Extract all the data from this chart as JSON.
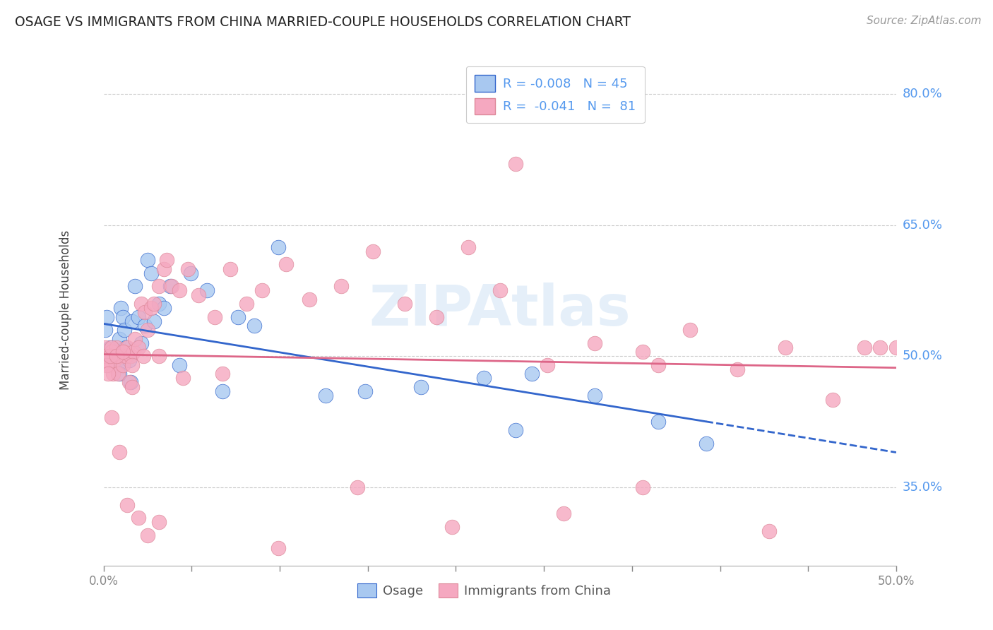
{
  "title": "OSAGE VS IMMIGRANTS FROM CHINA MARRIED-COUPLE HOUSEHOLDS CORRELATION CHART",
  "source": "Source: ZipAtlas.com",
  "ylabel": "Married-couple Households",
  "ytick_labels": [
    "35.0%",
    "50.0%",
    "65.0%",
    "80.0%"
  ],
  "ytick_values": [
    0.35,
    0.5,
    0.65,
    0.8
  ],
  "xlim": [
    0.0,
    0.5
  ],
  "ylim": [
    0.26,
    0.845
  ],
  "legend_line1": "R = -0.008   N = 45",
  "legend_line2": "R =  -0.041   N =  81",
  "color_blue": "#A8C8F0",
  "color_pink": "#F5A8C0",
  "color_trendline_blue": "#3366CC",
  "color_trendline_pink": "#DD6688",
  "background_color": "#FFFFFF",
  "grid_color": "#CCCCCC",
  "title_color": "#222222",
  "axis_label_color": "#5599EE",
  "watermark_color": "#AACCEE",
  "xtick_positions": [
    0.0,
    0.0556,
    0.1111,
    0.1667,
    0.2222,
    0.2778,
    0.3333,
    0.3889,
    0.4444,
    0.5
  ],
  "blue_x": [
    0.001,
    0.002,
    0.003,
    0.004,
    0.005,
    0.006,
    0.007,
    0.008,
    0.009,
    0.01,
    0.01,
    0.011,
    0.012,
    0.013,
    0.014,
    0.015,
    0.016,
    0.017,
    0.018,
    0.02,
    0.022,
    0.024,
    0.026,
    0.028,
    0.03,
    0.032,
    0.035,
    0.038,
    0.042,
    0.048,
    0.055,
    0.065,
    0.075,
    0.085,
    0.095,
    0.11,
    0.14,
    0.165,
    0.2,
    0.24,
    0.27,
    0.31,
    0.35,
    0.26,
    0.38
  ],
  "blue_y": [
    0.53,
    0.545,
    0.5,
    0.51,
    0.505,
    0.5,
    0.5,
    0.495,
    0.49,
    0.52,
    0.48,
    0.555,
    0.545,
    0.53,
    0.51,
    0.5,
    0.495,
    0.47,
    0.54,
    0.58,
    0.545,
    0.515,
    0.535,
    0.61,
    0.595,
    0.54,
    0.56,
    0.555,
    0.58,
    0.49,
    0.595,
    0.575,
    0.46,
    0.545,
    0.535,
    0.625,
    0.455,
    0.46,
    0.465,
    0.475,
    0.48,
    0.455,
    0.425,
    0.415,
    0.4
  ],
  "pink_x": [
    0.001,
    0.002,
    0.003,
    0.004,
    0.005,
    0.006,
    0.007,
    0.008,
    0.009,
    0.01,
    0.011,
    0.012,
    0.013,
    0.014,
    0.015,
    0.016,
    0.017,
    0.018,
    0.019,
    0.02,
    0.022,
    0.024,
    0.026,
    0.028,
    0.03,
    0.032,
    0.035,
    0.038,
    0.04,
    0.043,
    0.048,
    0.053,
    0.06,
    0.07,
    0.08,
    0.09,
    0.1,
    0.115,
    0.13,
    0.15,
    0.17,
    0.19,
    0.21,
    0.23,
    0.25,
    0.28,
    0.31,
    0.34,
    0.37,
    0.4,
    0.43,
    0.46,
    0.49,
    0.5,
    0.005,
    0.01,
    0.015,
    0.022,
    0.028,
    0.035,
    0.001,
    0.002,
    0.003,
    0.004,
    0.005,
    0.008,
    0.012,
    0.018,
    0.025,
    0.035,
    0.05,
    0.075,
    0.11,
    0.16,
    0.22,
    0.29,
    0.35,
    0.42,
    0.48,
    0.34,
    0.26
  ],
  "pink_y": [
    0.51,
    0.495,
    0.5,
    0.49,
    0.505,
    0.48,
    0.495,
    0.51,
    0.48,
    0.5,
    0.5,
    0.49,
    0.505,
    0.5,
    0.51,
    0.47,
    0.5,
    0.465,
    0.505,
    0.52,
    0.51,
    0.56,
    0.55,
    0.53,
    0.555,
    0.56,
    0.58,
    0.6,
    0.61,
    0.58,
    0.575,
    0.6,
    0.57,
    0.545,
    0.6,
    0.56,
    0.575,
    0.605,
    0.565,
    0.58,
    0.62,
    0.56,
    0.545,
    0.625,
    0.575,
    0.49,
    0.515,
    0.505,
    0.53,
    0.485,
    0.51,
    0.45,
    0.51,
    0.51,
    0.43,
    0.39,
    0.33,
    0.315,
    0.295,
    0.31,
    0.5,
    0.49,
    0.48,
    0.5,
    0.51,
    0.5,
    0.505,
    0.49,
    0.5,
    0.5,
    0.475,
    0.48,
    0.28,
    0.35,
    0.305,
    0.32,
    0.49,
    0.3,
    0.51,
    0.35,
    0.72
  ]
}
